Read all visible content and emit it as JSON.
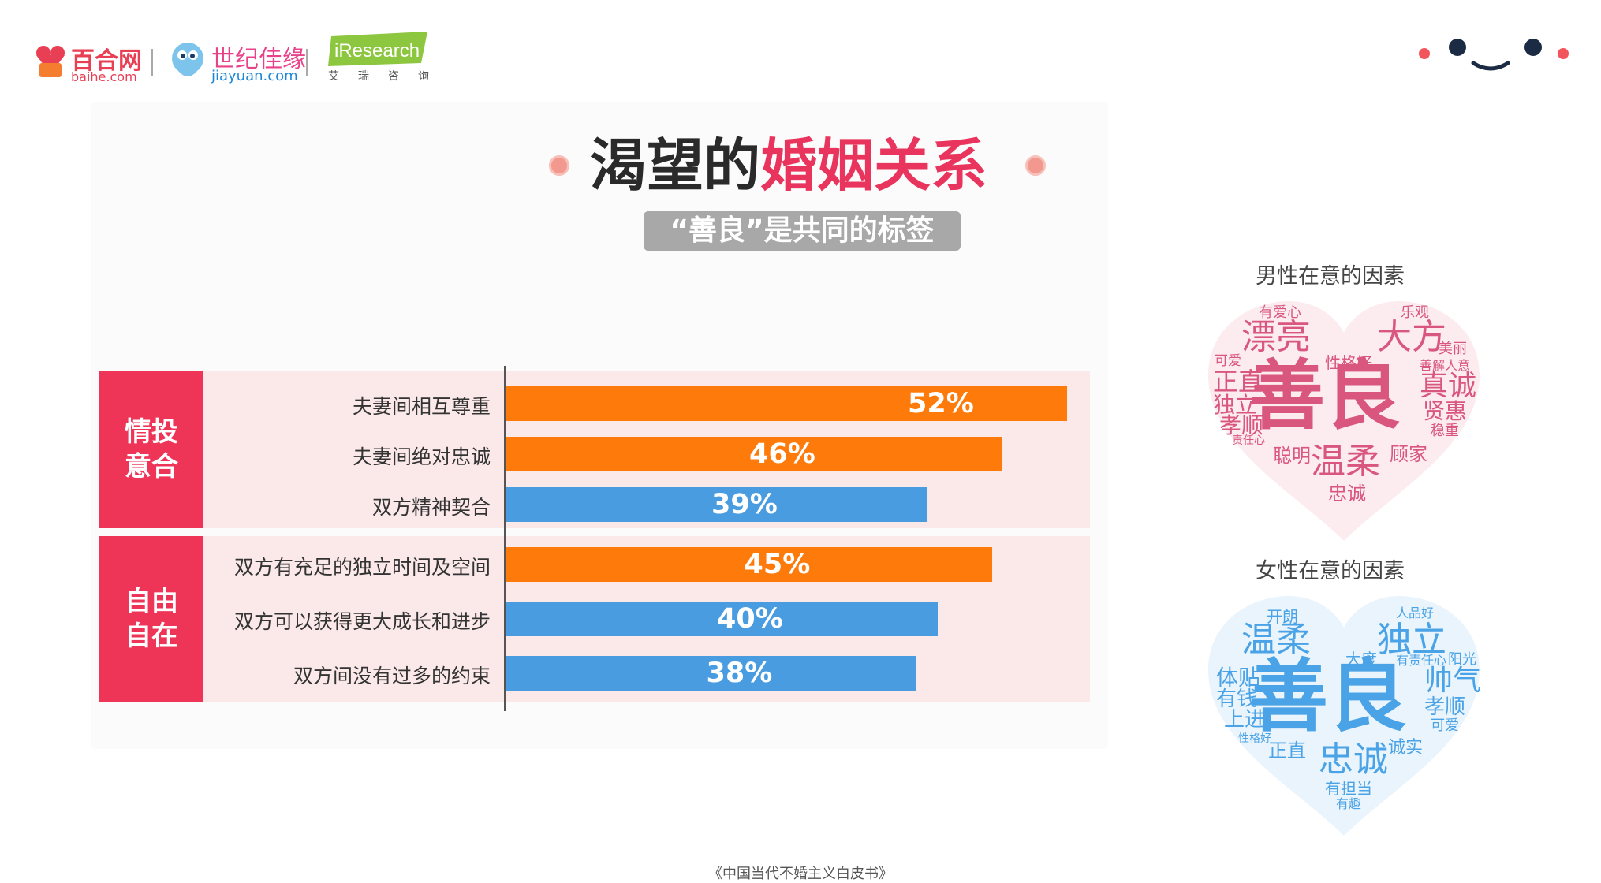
{
  "logos": {
    "baihe_name": "百合网",
    "baihe_url": "baihe.com",
    "jiayuan_name": "世纪佳缘",
    "jiayuan_url": "jiayuan.com",
    "iresearch_name": "iResearch",
    "iresearch_sub": "艾瑞咨询"
  },
  "title": {
    "part1": "渴望的",
    "part2": "婚姻关系"
  },
  "subtitle": "“善良”是共同的标签",
  "colors": {
    "orange": "#fe7a0b",
    "blue": "#4a9ce0",
    "group_red": "#ee3558",
    "group_bg": "#fbe9ea",
    "title_red": "#e9355d"
  },
  "chart_data": {
    "type": "bar",
    "orientation": "horizontal",
    "xlim": [
      0,
      60
    ],
    "groups": [
      {
        "label": "情投\n意合",
        "items": [
          {
            "label": "夫妻间相互尊重",
            "value": 52,
            "display": "52%",
            "color": "orange"
          },
          {
            "label": "夫妻间绝对忠诚",
            "value": 46,
            "display": "46%",
            "color": "orange"
          },
          {
            "label": "双方精神契合",
            "value": 39,
            "display": "39%",
            "color": "blue"
          }
        ]
      },
      {
        "label": "自由\n自在",
        "items": [
          {
            "label": "双方有充足的独立时间及空间",
            "value": 45,
            "display": "45%",
            "color": "orange"
          },
          {
            "label": "双方可以获得更大成长和进步",
            "value": 40,
            "display": "40%",
            "color": "blue"
          },
          {
            "label": "双方间没有过多的约束",
            "value": 38,
            "display": "38%",
            "color": "blue"
          }
        ]
      }
    ]
  },
  "male_cloud": {
    "title": "男性在意的因素",
    "words": [
      "善良",
      "大方",
      "漂亮",
      "真诚",
      "温柔",
      "正直",
      "独立",
      "孝顺",
      "贤惠",
      "聪明",
      "顾家",
      "忠诚",
      "有爱心",
      "乐观",
      "性格好",
      "美丽",
      "善解人意",
      "可爱",
      "稳重",
      "责任心"
    ]
  },
  "female_cloud": {
    "title": "女性在意的因素",
    "words": [
      "善良",
      "温柔",
      "独立",
      "帅气",
      "体贴",
      "有钱",
      "上进",
      "孝顺",
      "忠诚",
      "正直",
      "诚实",
      "开朗",
      "人品好",
      "大度",
      "有责任心",
      "阳光",
      "可爱",
      "性格好",
      "有担当",
      "有趣"
    ]
  },
  "footer": "《中国当代不婚主义白皮书》"
}
